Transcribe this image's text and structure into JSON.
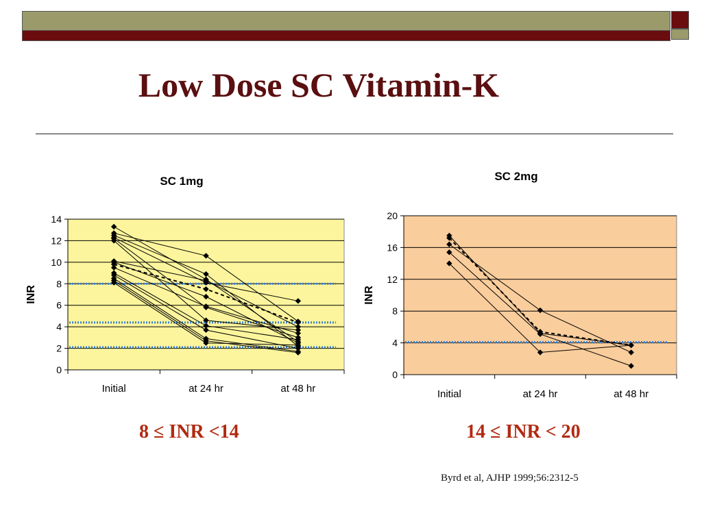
{
  "slide": {
    "title": "Low Dose SC Vitamin-K",
    "caption_left": "8 ≤ INR <14",
    "caption_right": "14 ≤ INR < 20",
    "citation": "Byrd et al, AJHP 1999;56:2312-5",
    "colors": {
      "title": "#5a0f10",
      "band_olive": "#9b9a6b",
      "band_maroon": "#6b0c0f",
      "caption": "#b12a12",
      "plot1_bg": "#fcf59d",
      "plot2_bg": "#f9cd9c",
      "reference_line": "#3a7fd0"
    }
  },
  "chart_data": [
    {
      "type": "line",
      "title": "SC 1mg",
      "xlabel": "",
      "ylabel": "INR",
      "categories": [
        "Initial",
        "at 24 hr",
        "at 48 hr"
      ],
      "ylim": [
        0,
        14
      ],
      "yticks": [
        0,
        2,
        4,
        6,
        8,
        10,
        12,
        14
      ],
      "grid": true,
      "reference_lines": [
        8,
        4.4,
        2.1
      ],
      "series": [
        {
          "values": [
            13.3,
            8.4,
            2.6
          ]
        },
        {
          "values": [
            12.7,
            10.6,
            4.5
          ]
        },
        {
          "values": [
            12.5,
            8.9,
            2.2
          ]
        },
        {
          "values": [
            12.3,
            8.1,
            6.4
          ]
        },
        {
          "values": [
            12.2,
            5.8,
            3.0
          ]
        },
        {
          "values": [
            12.0,
            4.6,
            3.7
          ]
        },
        {
          "values": [
            10.1,
            8.3,
            4.0
          ]
        },
        {
          "values": [
            10.0,
            6.8,
            2.5
          ]
        },
        {
          "values": [
            9.5,
            5.9,
            3.4
          ]
        },
        {
          "values": [
            9.0,
            4.1,
            2.8
          ]
        },
        {
          "values": [
            8.8,
            3.7,
            2.0
          ]
        },
        {
          "values": [
            8.5,
            2.9,
            1.7
          ]
        },
        {
          "values": [
            8.3,
            2.7,
            1.6
          ]
        },
        {
          "values": [
            8.1,
            2.5,
            2.3
          ]
        },
        {
          "values": [
            9.8,
            7.5,
            4.4
          ],
          "dashed": true
        }
      ]
    },
    {
      "type": "line",
      "title": "SC 2mg",
      "xlabel": "",
      "ylabel": "INR",
      "categories": [
        "Initial",
        "at 24 hr",
        "at 48 hr"
      ],
      "ylim": [
        0,
        20
      ],
      "yticks": [
        0,
        4,
        8,
        12,
        16,
        20
      ],
      "grid": true,
      "reference_lines": [
        4.1
      ],
      "series": [
        {
          "values": [
            17.5,
            5.2,
            3.7
          ]
        },
        {
          "values": [
            16.4,
            8.1,
            2.8
          ]
        },
        {
          "values": [
            15.4,
            5.1,
            1.1
          ]
        },
        {
          "values": [
            14.0,
            2.8,
            3.7
          ]
        },
        {
          "values": [
            17.2,
            5.4,
            3.7
          ],
          "dashed": true
        }
      ]
    }
  ]
}
